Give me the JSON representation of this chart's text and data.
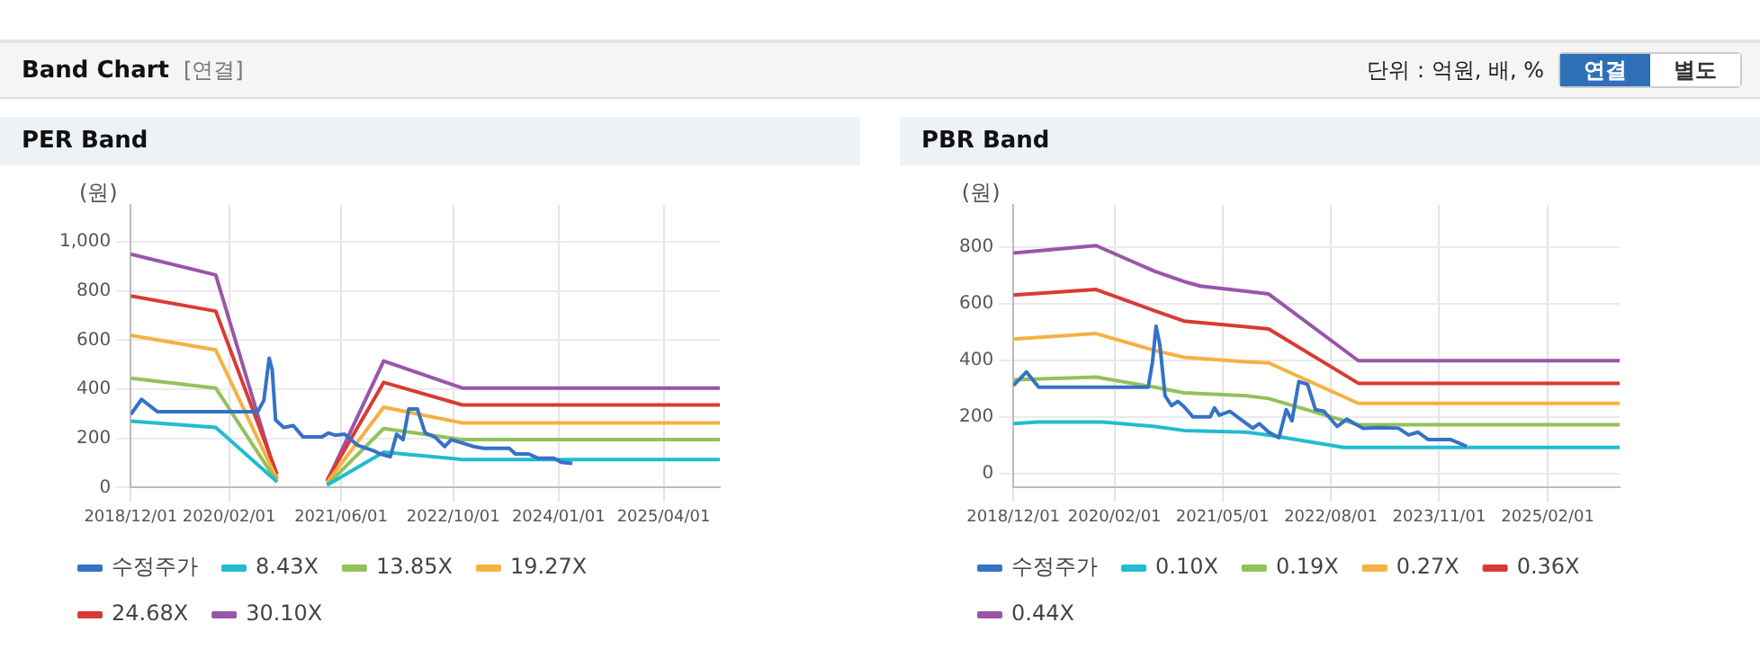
{
  "chart_data": [
    {
      "type": "other",
      "title": "Band Chart",
      "subtitle": "[연결]",
      "annotations": [
        "단위 : 억원, 배, %",
        "연결",
        "별도"
      ]
    },
    {
      "type": "line",
      "title": "PER Band",
      "ylabel": "(원)",
      "xlim": [
        "2018-12-01",
        "2025-12-01"
      ],
      "xticks": [
        {
          "value": "2018-12-01",
          "label": "2018/12/01"
        },
        {
          "value": "2020-02-01",
          "label": "2020/02/01"
        },
        {
          "value": "2021-06-01",
          "label": "2021/06/01"
        },
        {
          "value": "2022-10-01",
          "label": "2022/10/01"
        },
        {
          "value": "2024-01-01",
          "label": "2024/01/01"
        },
        {
          "value": "2025-04-01",
          "label": "2025/04/01"
        }
      ],
      "ylim": [
        0,
        1150
      ],
      "yticks": [
        0,
        200,
        400,
        600,
        800,
        {
          "value": 1000,
          "label": "1,000"
        }
      ],
      "grid": true,
      "legend": "bottom",
      "marker": "none",
      "line_style": "solid",
      "series": [
        {
          "name": "수정주가",
          "color": "#3572c6",
          "x": [
            "2018-12-01",
            "2019-01-17",
            "2019-03-26",
            "2020-06-04",
            "2020-07-01",
            "2020-07-24",
            "2020-08-06",
            "2020-08-21",
            "2020-09-25",
            "2020-11-06",
            "2020-12-18",
            "2021-03-10",
            "2021-04-07",
            "2021-05-06",
            "2021-06-16",
            "2021-08-12",
            "2021-10-22",
            "2021-11-18",
            "2022-01-01",
            "2022-01-28",
            "2022-02-25",
            "2022-03-22",
            "2022-04-28",
            "2022-06-01",
            "2022-07-13",
            "2022-08-25",
            "2022-09-22",
            "2022-11-04",
            "2022-12-28",
            "2023-02-10",
            "2023-06-01",
            "2023-06-28",
            "2023-08-24",
            "2023-10-04",
            "2023-12-13",
            "2024-01-12",
            "2024-03-01"
          ],
          "values": [
            297,
            359,
            309,
            309,
            355,
            526,
            480,
            275,
            245,
            252,
            206,
            206,
            222,
            213,
            217,
            172,
            149,
            137,
            126,
            217,
            195,
            320,
            320,
            222,
            206,
            167,
            195,
            183,
            167,
            160,
            160,
            137,
            137,
            119,
            119,
            103,
            98
          ]
        },
        {
          "name": "8.43X",
          "color": "#21bccf",
          "x": [
            "2018-12-01",
            "2019-12-05",
            "2020-08-27",
            "2020-12-01",
            "2021-04-01",
            "2021-12-03",
            "2022-11-10",
            "2025-12-01"
          ],
          "values": [
            270,
            245,
            23,
            null,
            10,
            144,
            114,
            114
          ]
        },
        {
          "name": "13.85X",
          "color": "#93c15b",
          "x": [
            "2018-12-01",
            "2019-12-05",
            "2020-08-27",
            "2020-12-01",
            "2021-04-01",
            "2021-12-03",
            "2022-11-10",
            "2025-12-01"
          ],
          "values": [
            445,
            405,
            23,
            null,
            10,
            240,
            195,
            195
          ]
        },
        {
          "name": "19.27X",
          "color": "#f5b143",
          "x": [
            "2018-12-01",
            "2019-12-05",
            "2020-08-27",
            "2020-12-01",
            "2021-04-01",
            "2021-12-03",
            "2022-11-10",
            "2025-12-01"
          ],
          "values": [
            620,
            560,
            34,
            null,
            20,
            327,
            263,
            263
          ]
        },
        {
          "name": "24.68X",
          "color": "#d83b34",
          "x": [
            "2018-12-01",
            "2019-12-05",
            "2020-08-27",
            "2020-12-01",
            "2021-04-01",
            "2021-12-03",
            "2022-11-10",
            "2025-12-01"
          ],
          "values": [
            780,
            718,
            55,
            null,
            30,
            428,
            336,
            336
          ]
        },
        {
          "name": "30.10X",
          "color": "#9a55a9",
          "x": [
            "2018-12-01",
            "2019-12-05",
            "2020-08-27",
            "2020-12-01",
            "2021-04-01",
            "2021-12-03",
            "2022-11-10",
            "2025-12-01"
          ],
          "values": [
            950,
            865,
            35,
            null,
            25,
            515,
            405,
            405
          ]
        }
      ]
    },
    {
      "type": "line",
      "title": "PBR Band",
      "ylabel": "(원)",
      "xlim": [
        "2018-12-01",
        "2025-12-01"
      ],
      "xticks": [
        {
          "value": "2018-12-01",
          "label": "2018/12/01"
        },
        {
          "value": "2020-02-01",
          "label": "2020/02/01"
        },
        {
          "value": "2021-05-01",
          "label": "2021/05/01"
        },
        {
          "value": "2022-08-01",
          "label": "2022/08/01"
        },
        {
          "value": "2023-11-01",
          "label": "2023/11/01"
        },
        {
          "value": "2025-02-01",
          "label": "2025/02/01"
        }
      ],
      "ylim": [
        -50,
        950
      ],
      "yticks": [
        0,
        200,
        400,
        600,
        800
      ],
      "grid": true,
      "legend": "bottom",
      "marker": "none",
      "line_style": "solid",
      "series": [
        {
          "name": "수정주가",
          "color": "#3572c6",
          "x": [
            "2018-12-01",
            "2019-01-25",
            "2019-03-18",
            "2020-06-22",
            "2020-07-10",
            "2020-07-25",
            "2020-08-10",
            "2020-09-01",
            "2020-09-28",
            "2020-10-25",
            "2020-11-20",
            "2020-12-28",
            "2021-03-10",
            "2021-03-28",
            "2021-04-18",
            "2021-06-01",
            "2021-07-25",
            "2021-09-06",
            "2021-10-03",
            "2021-11-12",
            "2021-12-25",
            "2022-01-25",
            "2022-02-18",
            "2022-03-19",
            "2022-04-25",
            "2022-05-28",
            "2022-07-03",
            "2022-08-28",
            "2022-10-07",
            "2022-12-15",
            "2023-03-06",
            "2023-05-13",
            "2023-06-25",
            "2023-08-04",
            "2023-09-15",
            "2023-12-18",
            "2024-02-25"
          ],
          "values": [
            311,
            359,
            305,
            305,
            395,
            521,
            455,
            275,
            240,
            255,
            236,
            200,
            200,
            232,
            206,
            220,
            186,
            160,
            176,
            146,
            126,
            226,
            186,
            325,
            315,
            226,
            220,
            166,
            192,
            160,
            162,
            160,
            136,
            146,
            120,
            120,
            96
          ]
        },
        {
          "name": "0.10X",
          "color": "#21bccf",
          "x": [
            "2018-12-01",
            "2019-03-12",
            "2019-12-13",
            "2020-07-20",
            "2020-11-20",
            "2021-08-08",
            "2021-11-12",
            "2022-09-25",
            "2025-12-01"
          ],
          "values": [
            176,
            182,
            182,
            166,
            152,
            146,
            136,
            92,
            92
          ]
        },
        {
          "name": "0.19X",
          "color": "#93c15b",
          "x": [
            "2018-12-01",
            "2019-11-15",
            "2020-07-20",
            "2020-11-20",
            "2021-08-08",
            "2021-11-12",
            "2022-11-25",
            "2025-12-01"
          ],
          "values": [
            331,
            341,
            305,
            285,
            275,
            265,
            172,
            172
          ]
        },
        {
          "name": "0.27X",
          "color": "#f5b143",
          "x": [
            "2018-12-01",
            "2019-11-15",
            "2020-07-20",
            "2020-11-20",
            "2021-08-08",
            "2021-11-12",
            "2022-11-25",
            "2025-12-01"
          ],
          "values": [
            475,
            495,
            435,
            411,
            395,
            391,
            248,
            248
          ]
        },
        {
          "name": "0.36X",
          "color": "#d83b34",
          "x": [
            "2018-12-01",
            "2019-11-15",
            "2020-07-20",
            "2020-11-20",
            "2021-08-08",
            "2021-11-12",
            "2022-11-25",
            "2025-12-01"
          ],
          "values": [
            631,
            651,
            575,
            539,
            519,
            511,
            319,
            319
          ]
        },
        {
          "name": "0.44X",
          "color": "#9a55a9",
          "x": [
            "2018-12-01",
            "2019-11-15",
            "2020-07-20",
            "2020-11-20",
            "2021-01-28",
            "2021-08-08",
            "2021-11-12",
            "2022-11-25",
            "2025-12-01"
          ],
          "values": [
            780,
            806,
            715,
            679,
            663,
            645,
            635,
            399,
            399
          ]
        }
      ]
    }
  ]
}
